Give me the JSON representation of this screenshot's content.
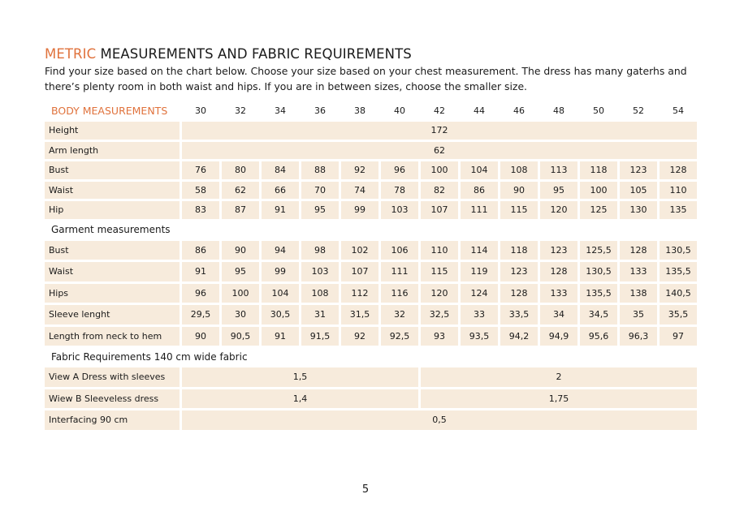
{
  "title": {
    "accent": "METRIC",
    "rest": " MEASUREMENTS AND FABRIC REQUIREMENTS"
  },
  "intro": "Find your size based on the chart below. Choose your size based on your chest measurement. The dress has many gaterhs and there’s plenty room in both waist and hips. If you are in between sizes, choose the smaller size.",
  "body": {
    "heading": "BODY MEASUREMENTS",
    "sizes": [
      "30",
      "32",
      "34",
      "36",
      "38",
      "40",
      "42",
      "44",
      "46",
      "48",
      "50",
      "52",
      "54"
    ],
    "height": {
      "label": "Height",
      "value": "172"
    },
    "arm_length": {
      "label": "Arm length",
      "value": "62"
    },
    "rows": [
      {
        "label": "Bust",
        "values": [
          "76",
          "80",
          "84",
          "88",
          "92",
          "96",
          "100",
          "104",
          "108",
          "113",
          "118",
          "123",
          "128"
        ]
      },
      {
        "label": "Waist",
        "values": [
          "58",
          "62",
          "66",
          "70",
          "74",
          "78",
          "82",
          "86",
          "90",
          "95",
          "100",
          "105",
          "110"
        ]
      },
      {
        "label": "Hip",
        "values": [
          "83",
          "87",
          "91",
          "95",
          "99",
          "103",
          "107",
          "111",
          "115",
          "120",
          "125",
          "130",
          "135"
        ]
      }
    ]
  },
  "garment": {
    "heading": "Garment measurements",
    "rows": [
      {
        "label": "Bust",
        "values": [
          "86",
          "90",
          "94",
          "98",
          "102",
          "106",
          "110",
          "114",
          "118",
          "123",
          "125,5",
          "128",
          "130,5"
        ]
      },
      {
        "label": "Waist",
        "values": [
          "91",
          "95",
          "99",
          "103",
          "107",
          "111",
          "115",
          "119",
          "123",
          "128",
          "130,5",
          "133",
          "135,5"
        ]
      },
      {
        "label": "Hips",
        "values": [
          "96",
          "100",
          "104",
          "108",
          "112",
          "116",
          "120",
          "124",
          "128",
          "133",
          "135,5",
          "138",
          "140,5"
        ]
      },
      {
        "label": "Sleeve lenght",
        "values": [
          "29,5",
          "30",
          "30,5",
          "31",
          "31,5",
          "32",
          "32,5",
          "33",
          "33,5",
          "34",
          "34,5",
          "35",
          "35,5"
        ]
      },
      {
        "label": "Length from neck to hem",
        "values": [
          "90",
          "90,5",
          "91",
          "91,5",
          "92",
          "92,5",
          "93",
          "93,5",
          "94,2",
          "94,9",
          "95,6",
          "96,3",
          "97"
        ]
      }
    ]
  },
  "fabric": {
    "heading": "Fabric Requirements 140 cm wide fabric",
    "view_a": {
      "label": "View A Dress with sleeves",
      "small": "1,5",
      "large": "2"
    },
    "view_b": {
      "label": "Wiew B Sleeveless dress",
      "small": "1,4",
      "large": "1,75"
    },
    "interfacing": {
      "label": "Interfacing 90 cm",
      "value": "0,5"
    }
  },
  "page_number": "5"
}
